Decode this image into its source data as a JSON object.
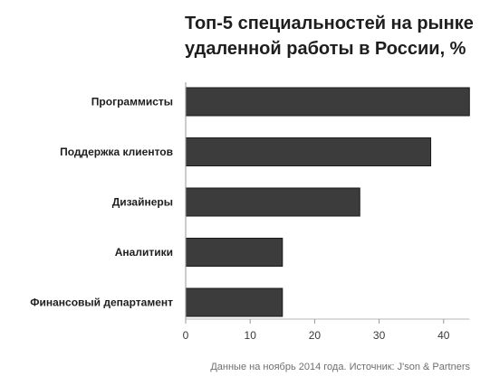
{
  "chart_data": {
    "type": "bar",
    "orientation": "horizontal",
    "title_lines": [
      "Топ-5 специальностей на рынке",
      "удаленной работы в России, %"
    ],
    "categories": [
      "Программисты",
      "Поддержка клиентов",
      "Дизайнеры",
      "Аналитики",
      "Финансовый департамент"
    ],
    "values": [
      44,
      38,
      27,
      15,
      15
    ],
    "xlim": [
      0,
      44
    ],
    "xticks": [
      0,
      10,
      20,
      30,
      40
    ],
    "grid": false,
    "bar_color": "#3c3c3c",
    "footnote": "Данные на ноябрь 2014 года. Источник: J'son & Partners"
  }
}
